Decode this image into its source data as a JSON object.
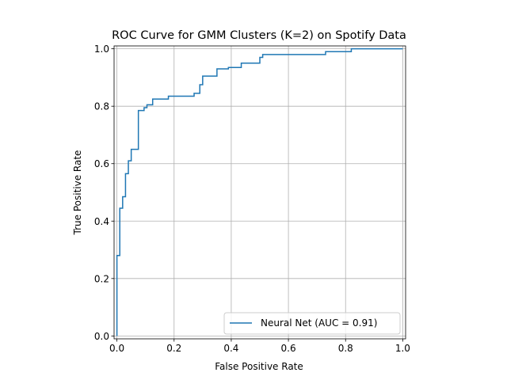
{
  "chart_data": {
    "type": "line",
    "title": "ROC Curve for GMM Clusters (K=2) on Spotify Data",
    "xlabel": "False Positive Rate",
    "ylabel": "True Positive Rate",
    "xlim": [
      -0.01,
      1.01
    ],
    "ylim": [
      -0.01,
      1.01
    ],
    "grid": true,
    "legend_position": "lower-right",
    "x_ticks": [
      "0.0",
      "0.2",
      "0.4",
      "0.6",
      "0.8",
      "1.0"
    ],
    "y_ticks": [
      "0.0",
      "0.2",
      "0.4",
      "0.6",
      "0.8",
      "1.0"
    ],
    "series": [
      {
        "name": "Neural Net (AUC = 0.91)",
        "color": "#1f77b4",
        "step": true,
        "x": [
          0,
          0,
          0.01,
          0.01,
          0.02,
          0.02,
          0.03,
          0.03,
          0.04,
          0.04,
          0.05,
          0.05,
          0.075,
          0.075,
          0.095,
          0.095,
          0.105,
          0.105,
          0.125,
          0.125,
          0.18,
          0.18,
          0.27,
          0.27,
          0.29,
          0.29,
          0.3,
          0.3,
          0.35,
          0.35,
          0.39,
          0.39,
          0.435,
          0.435,
          0.5,
          0.5,
          0.51,
          0.51,
          0.73,
          0.73,
          0.82,
          0.82,
          1.0
        ],
        "y": [
          0,
          0.28,
          0.28,
          0.445,
          0.445,
          0.485,
          0.485,
          0.565,
          0.565,
          0.61,
          0.61,
          0.65,
          0.65,
          0.785,
          0.785,
          0.795,
          0.795,
          0.805,
          0.805,
          0.825,
          0.825,
          0.835,
          0.835,
          0.845,
          0.845,
          0.875,
          0.875,
          0.905,
          0.905,
          0.93,
          0.93,
          0.935,
          0.935,
          0.95,
          0.95,
          0.97,
          0.97,
          0.98,
          0.98,
          0.99,
          0.99,
          1.0,
          1.0
        ]
      }
    ]
  }
}
